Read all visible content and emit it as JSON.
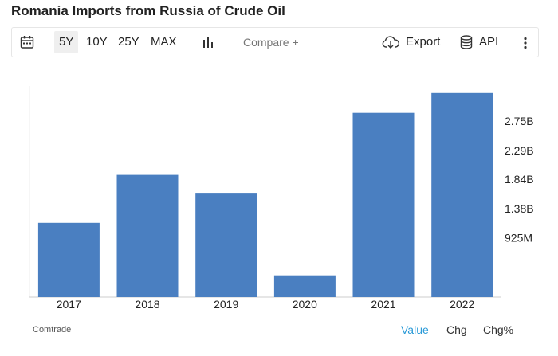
{
  "title": "Romania Imports from Russia of Crude Oil",
  "toolbar": {
    "ranges": [
      "5Y",
      "10Y",
      "25Y",
      "MAX"
    ],
    "active_range": "5Y",
    "compare_label": "Compare +",
    "export_label": "Export",
    "api_label": "API"
  },
  "chart_data": {
    "type": "bar",
    "categories": [
      "2017",
      "2018",
      "2019",
      "2020",
      "2021",
      "2022"
    ],
    "values": [
      1.16,
      1.91,
      1.63,
      0.34,
      2.88,
      3.19
    ],
    "unit": "B",
    "y_ticks": [
      "925M",
      "1.38B",
      "1.84B",
      "2.29B",
      "2.75B"
    ],
    "y_tick_values": [
      0.925,
      1.38,
      1.84,
      2.29,
      2.75
    ],
    "ylim": [
      0,
      3.3
    ],
    "y_axis_position": "right",
    "grid": false,
    "bar_color": "#4a7fc1"
  },
  "footer": {
    "source": "Comtrade",
    "tabs": [
      "Value",
      "Chg",
      "Chg%"
    ],
    "active_tab": "Value"
  }
}
